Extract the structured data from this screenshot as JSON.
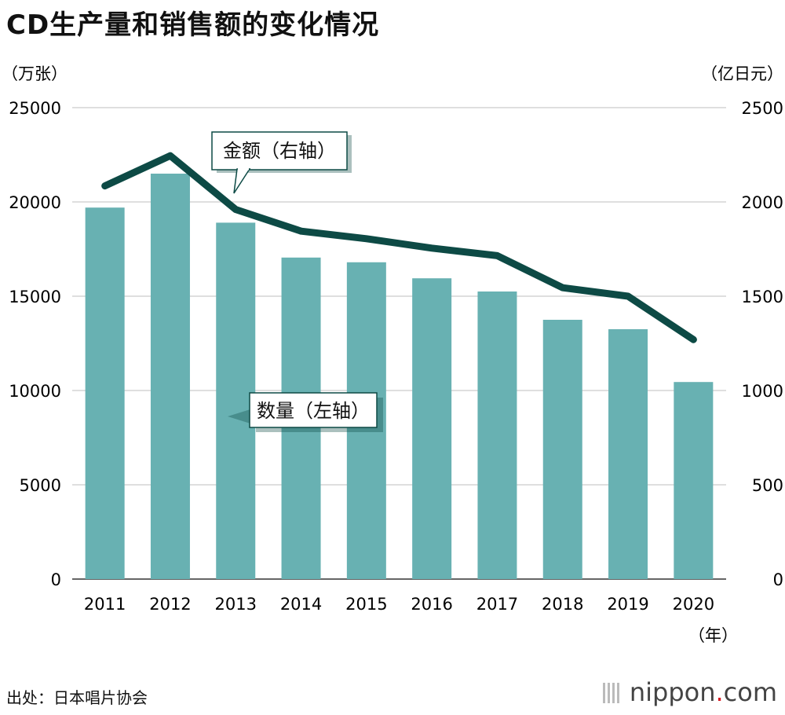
{
  "title": "CD生产量和销售额的变化情况",
  "source": "出处：日本唱片协会",
  "brand": {
    "name": "nippon",
    "dot": ".",
    "tld": "com"
  },
  "chart_data": {
    "type": "bar+line",
    "categories": [
      "2011",
      "2012",
      "2013",
      "2014",
      "2015",
      "2016",
      "2017",
      "2018",
      "2019",
      "2020"
    ],
    "series": [
      {
        "name": "数量（左轴）",
        "type": "bar",
        "axis": "left",
        "values": [
          19700,
          21500,
          18900,
          17050,
          16800,
          15950,
          15250,
          13750,
          13250,
          10450
        ],
        "color": "#68b1b2"
      },
      {
        "name": "金额（右轴）",
        "type": "line",
        "axis": "right",
        "values": [
          2085,
          2245,
          1960,
          1845,
          1805,
          1755,
          1715,
          1545,
          1500,
          1270
        ],
        "color": "#0d4a45"
      }
    ],
    "y_left": {
      "unit": "（万张）",
      "range": [
        0,
        25000
      ],
      "ticks": [
        0,
        5000,
        10000,
        15000,
        20000,
        25000
      ]
    },
    "y_right": {
      "unit": "（亿日元）",
      "range": [
        0,
        2500
      ],
      "ticks": [
        0,
        500,
        1000,
        1500,
        2000,
        2500
      ]
    },
    "x_unit": "（年）",
    "grid": true,
    "annotations": [
      "金额（右轴）",
      "数量（左轴）"
    ]
  }
}
